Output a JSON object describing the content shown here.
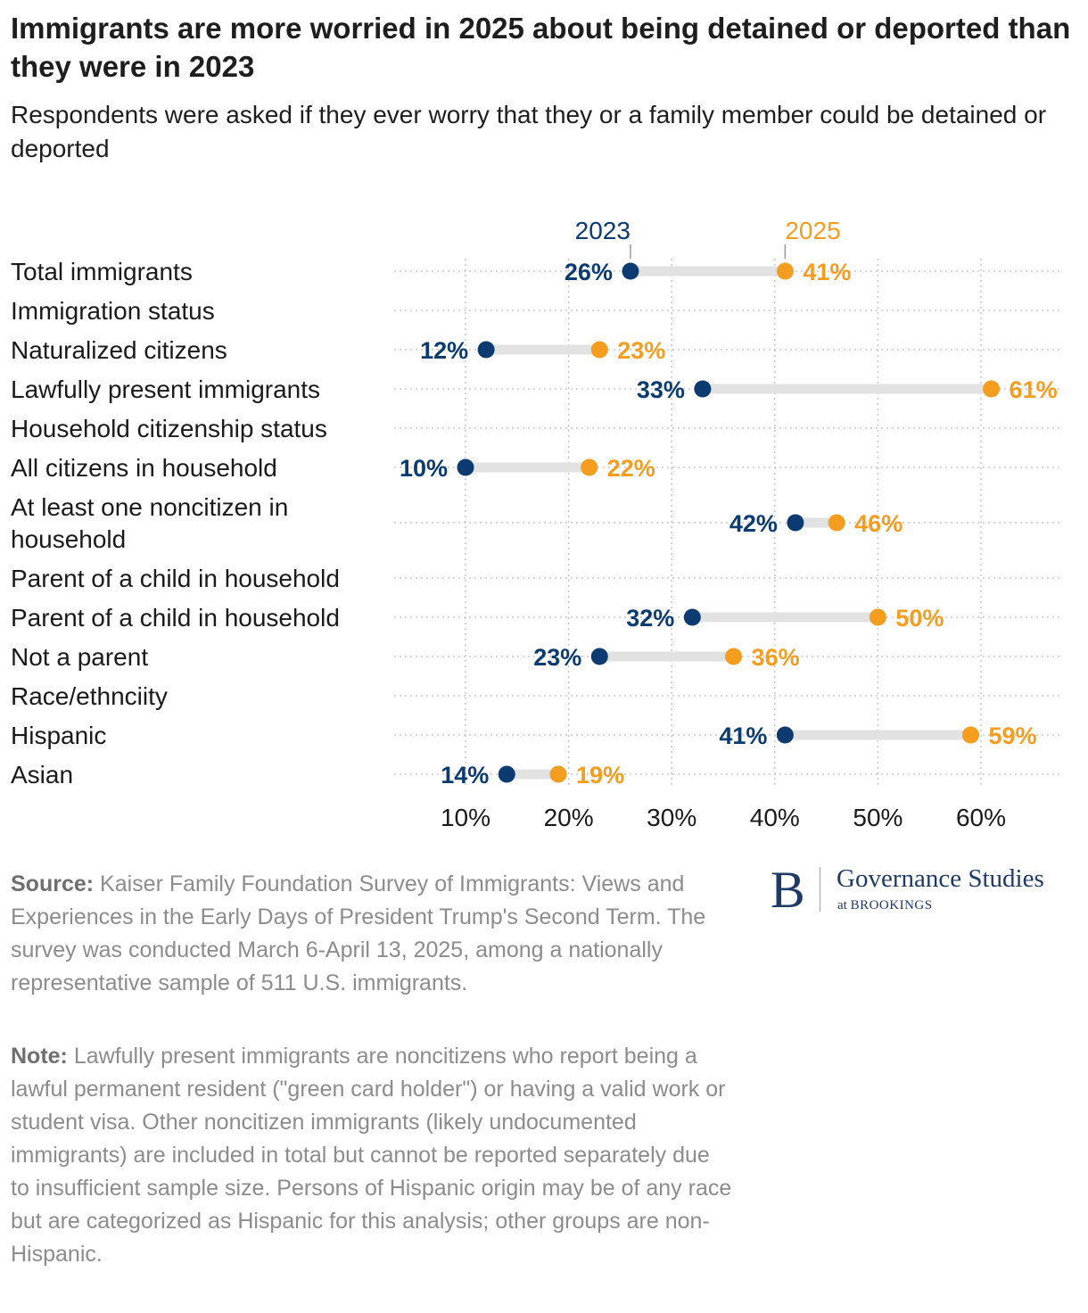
{
  "title": "Immigrants are more worried in 2025 about being detained or deported than they were in 2023",
  "subtitle": "Respondents were asked if they ever worry that they or a family member could be detained or deported",
  "chart_data": {
    "type": "dumbbell",
    "x_unit": "%",
    "xlim": [
      7,
      67
    ],
    "x_ticks": [
      10,
      20,
      30,
      40,
      50,
      60
    ],
    "x_tick_labels": [
      "10%",
      "20%",
      "30%",
      "40%",
      "50%",
      "60%"
    ],
    "grid": "dotted",
    "series": [
      {
        "name": "2023",
        "color": "#0b3b70"
      },
      {
        "name": "2025",
        "color": "#f49d1f"
      }
    ],
    "rows": [
      {
        "label": "Total immigrants",
        "v2023": 26,
        "v2025": 41,
        "label2023": "26%",
        "label2025": "41%"
      },
      {
        "label": "Immigration status"
      },
      {
        "label": "Naturalized citizens",
        "v2023": 12,
        "v2025": 23,
        "label2023": "12%",
        "label2025": "23%"
      },
      {
        "label": "Lawfully present immigrants",
        "v2023": 33,
        "v2025": 61,
        "label2023": "33%",
        "label2025": "61%"
      },
      {
        "label": "Household citizenship status"
      },
      {
        "label": "All citizens in household",
        "v2023": 10,
        "v2025": 22,
        "label2023": "10%",
        "label2025": "22%"
      },
      {
        "label": "At least one noncitizen in household",
        "label_lines": [
          "At least one noncitizen in",
          "household"
        ],
        "v2023": 42,
        "v2025": 46,
        "label2023": "42%",
        "label2025": "46%"
      },
      {
        "label": "Parent of a child in household"
      },
      {
        "label": "Parent of a child in household",
        "v2023": 32,
        "v2025": 50,
        "label2023": "32%",
        "label2025": "50%"
      },
      {
        "label": "Not a parent",
        "v2023": 23,
        "v2025": 36,
        "label2023": "23%",
        "label2025": "36%"
      },
      {
        "label": "Race/ethnciity"
      },
      {
        "label": "Hispanic",
        "v2023": 41,
        "v2025": 59,
        "label2023": "41%",
        "label2025": "59%"
      },
      {
        "label": "Asian",
        "v2023": 14,
        "v2025": 19,
        "label2023": "14%",
        "label2025": "19%"
      }
    ]
  },
  "footer": {
    "source_label": "Source:",
    "source_text": " Kaiser Family Foundation Survey of Immigrants: Views and Experiences in the Early Days of President Trump's Second Term. The survey was conducted March 6-April 13, 2025, among a nationally representative sample of 511 U.S. immigrants.",
    "note_label": "Note:",
    "note_text": " Lawfully present immigrants are noncitizens who report being a lawful permanent resident (\"green card holder\") or having a valid work or student visa. Other noncitizen immigrants (likely undocumented immigrants) are included in total but cannot be reported separately due to insufficient sample size. Persons of Hispanic origin may be of any race but are categorized as Hispanic for this analysis; other groups are non-Hispanic."
  },
  "logo": {
    "letter": "B",
    "name": "Governance Studies",
    "sub_prefix": "at",
    "sub_org": "BROOKINGS"
  }
}
